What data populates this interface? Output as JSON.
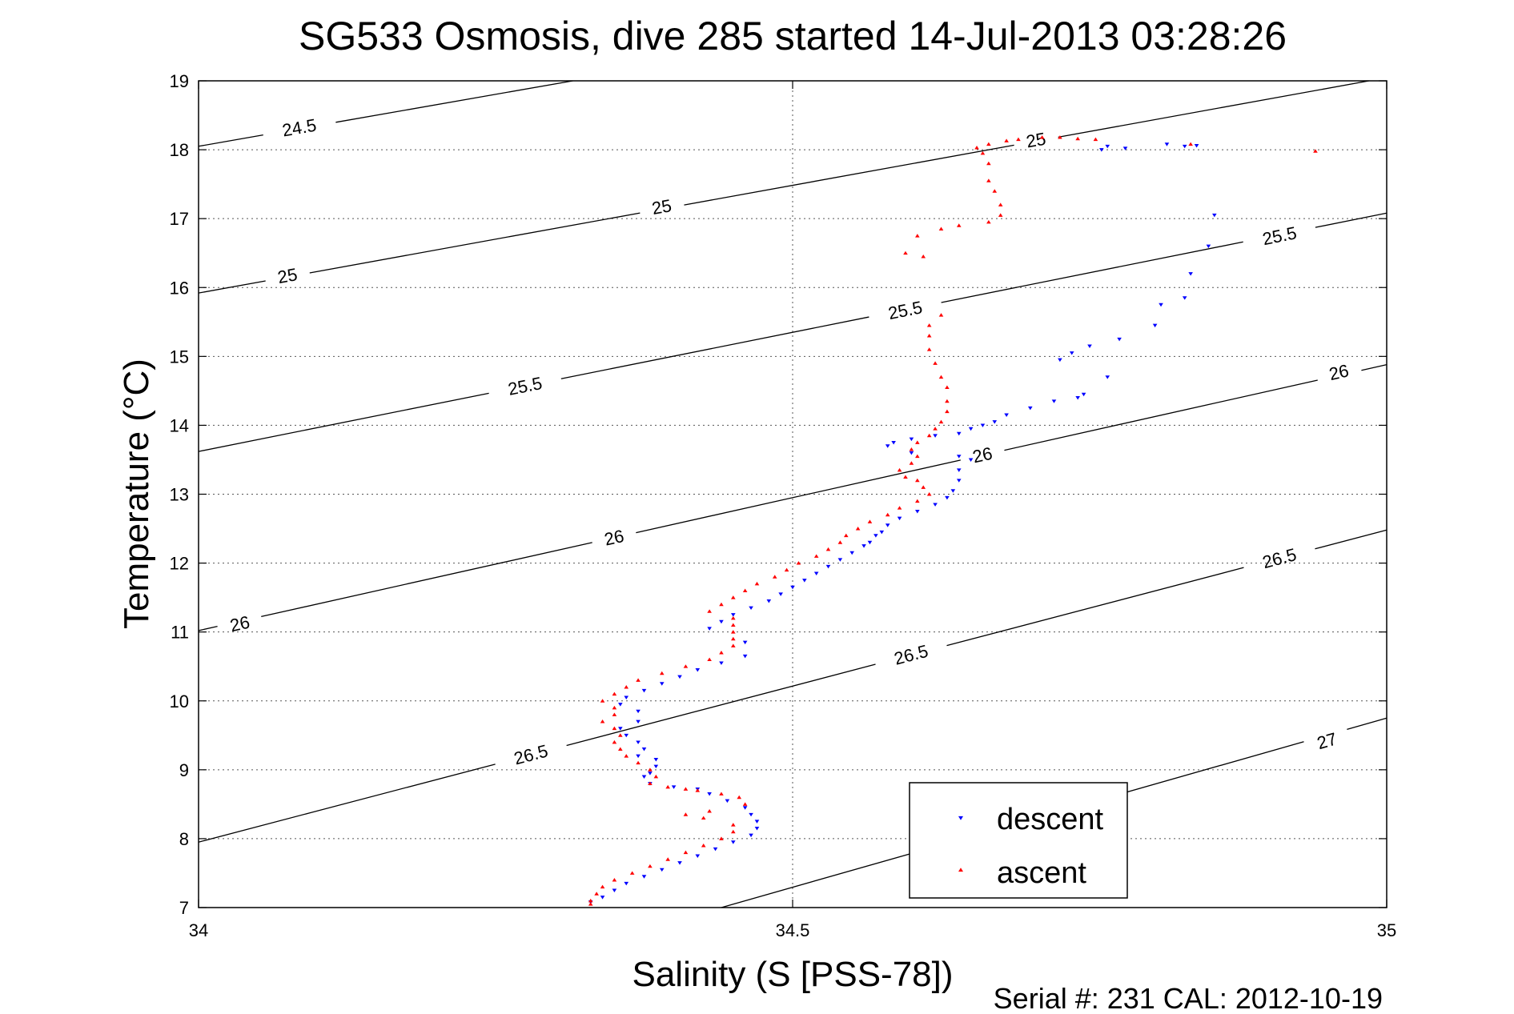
{
  "chart_data": {
    "type": "scatter",
    "title": "SG533 Osmosis, dive 285 started 14-Jul-2013 03:28:26",
    "xlabel": "Salinity (S [PSS-78])",
    "ylabel": "Temperature (°C)",
    "footer": "Serial #: 231  CAL: 2012-10-19",
    "xlim": [
      34,
      35
    ],
    "ylim": [
      7,
      19
    ],
    "x_ticks": [
      34,
      34.5,
      35
    ],
    "x_tick_labels": [
      "34",
      "34.5",
      "35"
    ],
    "y_ticks": [
      7,
      8,
      9,
      10,
      11,
      12,
      13,
      14,
      15,
      16,
      17,
      18,
      19
    ],
    "y_tick_labels": [
      "7",
      "8",
      "9",
      "10",
      "11",
      "12",
      "13",
      "14",
      "15",
      "16",
      "17",
      "18",
      "19"
    ],
    "grid": true,
    "legend": {
      "placement": "lower-right",
      "entries": [
        "descent",
        "ascent"
      ]
    },
    "density_contours": [
      {
        "level": "24.5",
        "points": [
          [
            34,
            18.05
          ],
          [
            34.315,
            19
          ]
        ],
        "labels": [
          {
            "text": "24.5",
            "x": 34.085,
            "y": 18.3
          }
        ]
      },
      {
        "level": "25",
        "points": [
          [
            34,
            15.92
          ],
          [
            34.985,
            19
          ]
        ],
        "labels": [
          {
            "text": "25",
            "x": 34.075,
            "y": 16.15
          },
          {
            "text": "25",
            "x": 34.39,
            "y": 17.15
          },
          {
            "text": "25",
            "x": 34.705,
            "y": 18.12
          }
        ]
      },
      {
        "level": "25.5",
        "points": [
          [
            34,
            13.62
          ],
          [
            35,
            17.08
          ]
        ],
        "labels": [
          {
            "text": "25.5",
            "x": 34.275,
            "y": 14.55
          },
          {
            "text": "25.5",
            "x": 34.595,
            "y": 15.65
          },
          {
            "text": "25.5",
            "x": 34.91,
            "y": 16.73
          }
        ]
      },
      {
        "level": "26",
        "points": [
          [
            34,
            11.02
          ],
          [
            35,
            14.88
          ]
        ],
        "labels": [
          {
            "text": "26",
            "x": 34.035,
            "y": 11.1
          },
          {
            "text": "26",
            "x": 34.35,
            "y": 12.35
          },
          {
            "text": "26",
            "x": 34.66,
            "y": 13.55
          },
          {
            "text": "26",
            "x": 34.96,
            "y": 14.75
          }
        ]
      },
      {
        "level": "26.5",
        "points": [
          [
            34,
            7.95
          ],
          [
            35,
            12.48
          ]
        ],
        "labels": [
          {
            "text": "26.5",
            "x": 34.28,
            "y": 9.2
          },
          {
            "text": "26.5",
            "x": 34.6,
            "y": 10.65
          },
          {
            "text": "26.5",
            "x": 34.91,
            "y": 12.05
          }
        ]
      },
      {
        "level": "27",
        "points": [
          [
            34.44,
            7
          ],
          [
            35,
            9.75
          ]
        ],
        "labels": [
          {
            "text": "27",
            "x": 34.95,
            "y": 9.4
          }
        ]
      }
    ],
    "series": [
      {
        "name": "descent",
        "color": "#0000ff",
        "marker": "triangle-down",
        "points": [
          [
            34.765,
            18.05
          ],
          [
            34.76,
            18.0
          ],
          [
            34.78,
            18.02
          ],
          [
            34.83,
            18.05
          ],
          [
            34.84,
            18.06
          ],
          [
            34.815,
            18.08
          ],
          [
            34.855,
            17.05
          ],
          [
            34.85,
            16.6
          ],
          [
            34.835,
            16.2
          ],
          [
            34.83,
            15.85
          ],
          [
            34.81,
            15.75
          ],
          [
            34.805,
            15.45
          ],
          [
            34.775,
            15.25
          ],
          [
            34.75,
            15.15
          ],
          [
            34.735,
            15.05
          ],
          [
            34.725,
            14.95
          ],
          [
            34.765,
            14.7
          ],
          [
            34.745,
            14.45
          ],
          [
            34.74,
            14.4
          ],
          [
            34.72,
            14.35
          ],
          [
            34.7,
            14.25
          ],
          [
            34.68,
            14.15
          ],
          [
            34.67,
            14.05
          ],
          [
            34.66,
            14.0
          ],
          [
            34.65,
            13.95
          ],
          [
            34.64,
            13.88
          ],
          [
            34.62,
            13.85
          ],
          [
            34.6,
            13.8
          ],
          [
            34.585,
            13.75
          ],
          [
            34.58,
            13.7
          ],
          [
            34.6,
            13.6
          ],
          [
            34.64,
            13.55
          ],
          [
            34.65,
            13.5
          ],
          [
            34.64,
            13.35
          ],
          [
            34.64,
            13.2
          ],
          [
            34.635,
            13.05
          ],
          [
            34.63,
            12.95
          ],
          [
            34.62,
            12.85
          ],
          [
            34.605,
            12.75
          ],
          [
            34.59,
            12.65
          ],
          [
            34.58,
            12.55
          ],
          [
            34.575,
            12.45
          ],
          [
            34.57,
            12.4
          ],
          [
            34.565,
            12.3
          ],
          [
            34.56,
            12.25
          ],
          [
            34.55,
            12.15
          ],
          [
            34.54,
            12.05
          ],
          [
            34.53,
            11.95
          ],
          [
            34.52,
            11.85
          ],
          [
            34.51,
            11.75
          ],
          [
            34.5,
            11.65
          ],
          [
            34.49,
            11.55
          ],
          [
            34.48,
            11.45
          ],
          [
            34.465,
            11.35
          ],
          [
            34.45,
            11.25
          ],
          [
            34.44,
            11.15
          ],
          [
            34.43,
            11.05
          ],
          [
            34.46,
            10.85
          ],
          [
            34.46,
            10.65
          ],
          [
            34.44,
            10.55
          ],
          [
            34.42,
            10.45
          ],
          [
            34.405,
            10.35
          ],
          [
            34.39,
            10.25
          ],
          [
            34.375,
            10.15
          ],
          [
            34.36,
            10.05
          ],
          [
            34.355,
            9.95
          ],
          [
            34.37,
            9.85
          ],
          [
            34.37,
            9.7
          ],
          [
            34.355,
            9.6
          ],
          [
            34.36,
            9.5
          ],
          [
            34.37,
            9.4
          ],
          [
            34.375,
            9.3
          ],
          [
            34.37,
            9.2
          ],
          [
            34.385,
            9.15
          ],
          [
            34.385,
            9.05
          ],
          [
            34.38,
            8.95
          ],
          [
            34.375,
            8.9
          ],
          [
            34.38,
            8.8
          ],
          [
            34.4,
            8.75
          ],
          [
            34.42,
            8.72
          ],
          [
            34.43,
            8.65
          ],
          [
            34.445,
            8.55
          ],
          [
            34.46,
            8.45
          ],
          [
            34.465,
            8.35
          ],
          [
            34.47,
            8.25
          ],
          [
            34.47,
            8.15
          ],
          [
            34.465,
            8.05
          ],
          [
            34.45,
            7.95
          ],
          [
            34.435,
            7.85
          ],
          [
            34.42,
            7.75
          ],
          [
            34.405,
            7.65
          ],
          [
            34.39,
            7.55
          ],
          [
            34.375,
            7.45
          ],
          [
            34.36,
            7.35
          ],
          [
            34.35,
            7.25
          ],
          [
            34.34,
            7.15
          ],
          [
            34.33,
            7.08
          ]
        ]
      },
      {
        "name": "ascent",
        "color": "#ff0000",
        "marker": "triangle-up",
        "points": [
          [
            34.94,
            17.98
          ],
          [
            34.835,
            18.08
          ],
          [
            34.755,
            18.15
          ],
          [
            34.74,
            18.16
          ],
          [
            34.725,
            18.18
          ],
          [
            34.71,
            18.18
          ],
          [
            34.69,
            18.15
          ],
          [
            34.68,
            18.13
          ],
          [
            34.665,
            18.08
          ],
          [
            34.655,
            18.03
          ],
          [
            34.66,
            17.95
          ],
          [
            34.665,
            17.8
          ],
          [
            34.665,
            17.55
          ],
          [
            34.67,
            17.4
          ],
          [
            34.675,
            17.2
          ],
          [
            34.675,
            17.05
          ],
          [
            34.665,
            16.95
          ],
          [
            34.64,
            16.9
          ],
          [
            34.625,
            16.85
          ],
          [
            34.605,
            16.75
          ],
          [
            34.595,
            16.5
          ],
          [
            34.61,
            16.45
          ],
          [
            34.625,
            15.6
          ],
          [
            34.615,
            15.45
          ],
          [
            34.615,
            15.3
          ],
          [
            34.615,
            15.1
          ],
          [
            34.62,
            14.9
          ],
          [
            34.625,
            14.7
          ],
          [
            34.63,
            14.55
          ],
          [
            34.63,
            14.35
          ],
          [
            34.63,
            14.2
          ],
          [
            34.625,
            14.05
          ],
          [
            34.62,
            13.95
          ],
          [
            34.615,
            13.85
          ],
          [
            34.605,
            13.75
          ],
          [
            34.6,
            13.65
          ],
          [
            34.605,
            13.55
          ],
          [
            34.6,
            13.45
          ],
          [
            34.59,
            13.35
          ],
          [
            34.595,
            13.25
          ],
          [
            34.605,
            13.2
          ],
          [
            34.61,
            13.1
          ],
          [
            34.615,
            13.0
          ],
          [
            34.605,
            12.9
          ],
          [
            34.59,
            12.8
          ],
          [
            34.58,
            12.7
          ],
          [
            34.565,
            12.6
          ],
          [
            34.555,
            12.5
          ],
          [
            34.545,
            12.4
          ],
          [
            34.54,
            12.3
          ],
          [
            34.53,
            12.2
          ],
          [
            34.52,
            12.1
          ],
          [
            34.505,
            12.0
          ],
          [
            34.495,
            11.9
          ],
          [
            34.485,
            11.8
          ],
          [
            34.47,
            11.7
          ],
          [
            34.46,
            11.6
          ],
          [
            34.45,
            11.5
          ],
          [
            34.44,
            11.4
          ],
          [
            34.43,
            11.3
          ],
          [
            34.45,
            11.2
          ],
          [
            34.45,
            11.1
          ],
          [
            34.45,
            11.0
          ],
          [
            34.45,
            10.9
          ],
          [
            34.45,
            10.8
          ],
          [
            34.44,
            10.7
          ],
          [
            34.43,
            10.6
          ],
          [
            34.41,
            10.5
          ],
          [
            34.39,
            10.4
          ],
          [
            34.37,
            10.3
          ],
          [
            34.36,
            10.2
          ],
          [
            34.35,
            10.1
          ],
          [
            34.34,
            10.0
          ],
          [
            34.35,
            9.9
          ],
          [
            34.35,
            9.8
          ],
          [
            34.34,
            9.7
          ],
          [
            34.35,
            9.6
          ],
          [
            34.355,
            9.5
          ],
          [
            34.35,
            9.4
          ],
          [
            34.355,
            9.3
          ],
          [
            34.36,
            9.2
          ],
          [
            34.37,
            9.1
          ],
          [
            34.38,
            9.0
          ],
          [
            34.385,
            8.9
          ],
          [
            34.38,
            8.8
          ],
          [
            34.395,
            8.75
          ],
          [
            34.41,
            8.72
          ],
          [
            34.42,
            8.7
          ],
          [
            34.44,
            8.65
          ],
          [
            34.455,
            8.6
          ],
          [
            34.46,
            8.5
          ],
          [
            34.43,
            8.4
          ],
          [
            34.41,
            8.35
          ],
          [
            34.425,
            8.3
          ],
          [
            34.45,
            8.2
          ],
          [
            34.45,
            8.1
          ],
          [
            34.44,
            8.0
          ],
          [
            34.425,
            7.9
          ],
          [
            34.41,
            7.8
          ],
          [
            34.395,
            7.7
          ],
          [
            34.38,
            7.6
          ],
          [
            34.365,
            7.5
          ],
          [
            34.35,
            7.4
          ],
          [
            34.34,
            7.3
          ],
          [
            34.335,
            7.2
          ],
          [
            34.33,
            7.1
          ],
          [
            34.33,
            7.05
          ]
        ]
      }
    ]
  }
}
